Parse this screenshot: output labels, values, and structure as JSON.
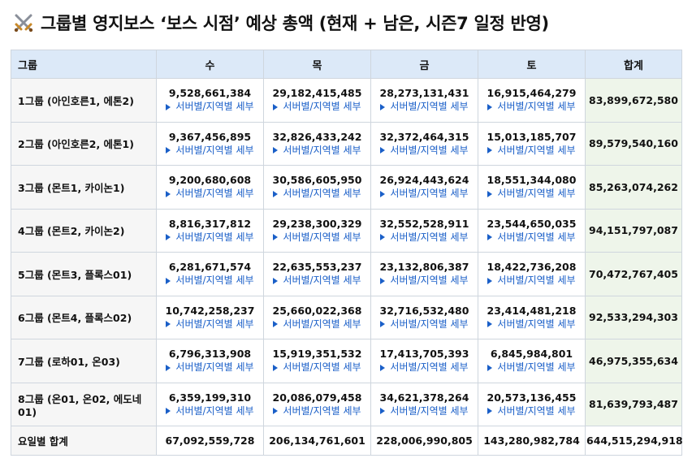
{
  "title": "그룹별 영지보스 ‘보스 시점’ 예상 총액 (현재 + 남은, 시즌7 일정 반영)",
  "icon": "crossed-swords-icon",
  "detail_label": "서버별/지역별 세부",
  "headers": [
    "그룹",
    "수",
    "목",
    "금",
    "토",
    "합계"
  ],
  "rows": [
    {
      "group": "1그룹 (아인호른1, 에톤2)",
      "values": [
        "9,528,661,384",
        "29,182,415,485",
        "28,273,131,431",
        "16,915,464,279"
      ],
      "total": "83,899,672,580"
    },
    {
      "group": "2그룹 (아인호른2, 에톤1)",
      "values": [
        "9,367,456,895",
        "32,826,433,242",
        "32,372,464,315",
        "15,013,185,707"
      ],
      "total": "89,579,540,160"
    },
    {
      "group": "3그룹 (몬트1, 카이논1)",
      "values": [
        "9,200,680,608",
        "30,586,605,950",
        "26,924,443,624",
        "18,551,344,080"
      ],
      "total": "85,263,074,262"
    },
    {
      "group": "4그룹 (몬트2, 카이논2)",
      "values": [
        "8,816,317,812",
        "29,238,300,329",
        "32,552,528,911",
        "23,544,650,035"
      ],
      "total": "94,151,797,087"
    },
    {
      "group": "5그룹 (몬트3, 플록스01)",
      "values": [
        "6,281,671,574",
        "22,635,553,237",
        "23,132,806,387",
        "18,422,736,208"
      ],
      "total": "70,472,767,405"
    },
    {
      "group": "6그룹 (몬트4, 플록스02)",
      "values": [
        "10,742,258,237",
        "25,660,022,368",
        "32,716,532,480",
        "23,414,481,218"
      ],
      "total": "92,533,294,303"
    },
    {
      "group": "7그룹 (로하01, 온03)",
      "values": [
        "6,796,313,908",
        "15,919,351,532",
        "17,413,705,393",
        "6,845,984,801"
      ],
      "total": "46,975,355,634"
    },
    {
      "group": "8그룹 (온01, 온02, 에도네01)",
      "values": [
        "6,359,199,310",
        "20,086,079,458",
        "34,621,378,264",
        "20,573,136,455"
      ],
      "total": "81,639,793,487"
    }
  ],
  "footer": {
    "label": "요일별 합계",
    "values": [
      "67,092,559,728",
      "206,134,761,601",
      "228,006,990,805",
      "143,280,982,784"
    ],
    "grand_total": "644,515,294,918"
  },
  "colors": {
    "header_bg": "#dce9f8",
    "total_bg": "#eef5ea",
    "label_bg": "#f6f6f6",
    "link": "#1a5fc8",
    "border": "#cfd6de"
  }
}
